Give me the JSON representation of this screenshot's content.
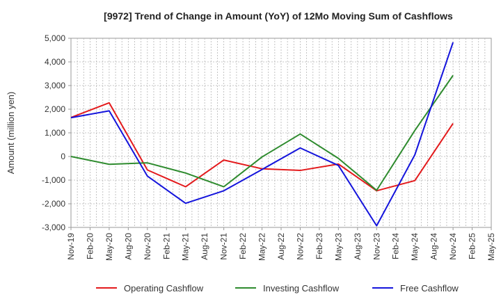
{
  "chart_data": {
    "type": "line",
    "title": "[9972]  Trend of Change in Amount (YoY) of 12Mo Moving Sum of Cashflows",
    "xlabel": "",
    "ylabel": "Amount (million yen)",
    "ylim": [
      -3000,
      5000
    ],
    "yticks": [
      5000,
      4000,
      3000,
      2000,
      1000,
      0,
      -1000,
      -2000,
      -3000
    ],
    "ytick_labels": [
      "5,000",
      "4,000",
      "3,000",
      "2,000",
      "1,000",
      "0",
      "-1,000",
      "-2,000",
      "-3,000"
    ],
    "categories": [
      "Nov-19",
      "Feb-20",
      "May-20",
      "Aug-20",
      "Nov-20",
      "Feb-21",
      "May-21",
      "Aug-21",
      "Nov-21",
      "Feb-22",
      "May-22",
      "Aug-22",
      "Nov-22",
      "Feb-23",
      "May-23",
      "Aug-23",
      "Nov-23",
      "Feb-24",
      "May-24",
      "Aug-24",
      "Nov-24",
      "Feb-25",
      "May-25"
    ],
    "grid": true,
    "legend_position": "bottom",
    "series": [
      {
        "name": "Operating Cashflow",
        "color": "#e31a1c",
        "values": [
          1650,
          null,
          2270,
          null,
          -570,
          null,
          -1280,
          null,
          -150,
          null,
          -520,
          null,
          -590,
          null,
          -320,
          null,
          -1450,
          null,
          -1020,
          null,
          1400,
          null,
          null
        ]
      },
      {
        "name": "Investing Cashflow",
        "color": "#2e8b2e",
        "values": [
          0,
          null,
          -330,
          null,
          -270,
          null,
          -700,
          null,
          -1280,
          null,
          -20,
          null,
          950,
          null,
          -80,
          null,
          -1430,
          null,
          1100,
          null,
          3430,
          null,
          null
        ]
      },
      {
        "name": "Free Cashflow",
        "color": "#1414dc",
        "values": [
          1640,
          null,
          1930,
          null,
          -830,
          null,
          -1980,
          null,
          -1450,
          null,
          -550,
          null,
          360,
          null,
          -380,
          null,
          -2930,
          null,
          70,
          null,
          4830,
          null,
          null
        ]
      }
    ]
  }
}
